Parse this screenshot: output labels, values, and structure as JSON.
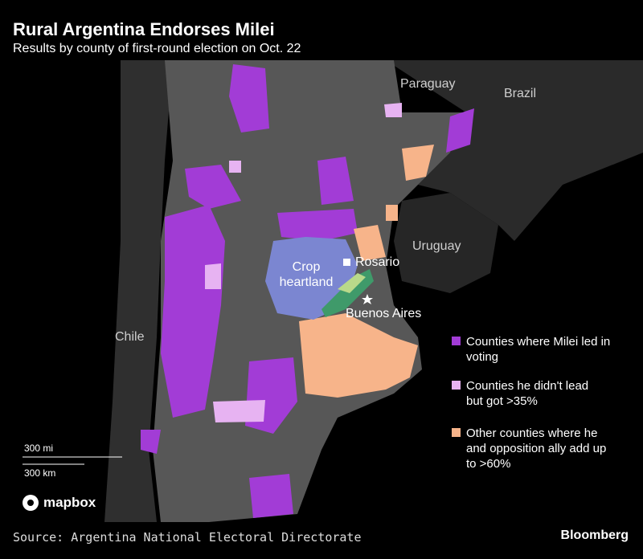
{
  "header": {
    "title": "Rural Argentina Endorses Milei",
    "subtitle": "Results by county of first-round election on Oct. 22"
  },
  "map": {
    "labels": {
      "paraguay": "Paraguay",
      "brazil": "Brazil",
      "uruguay": "Uruguay",
      "chile": "Chile",
      "rosario": "Rosario",
      "buenos_aires": "Buenos Aires",
      "crop": "Crop heartland"
    }
  },
  "legend": [
    "Counties where Milei led in voting",
    "Counties he didn't lead but got >35%",
    "Other counties where he and opposition ally add up to >60%"
  ],
  "scale": {
    "miles": "300 mi",
    "km": "300 km",
    "attribution": "mapbox"
  },
  "footer": {
    "source": "Source: Argentina National Electoral Directorate",
    "brand": "Bloomberg"
  }
}
